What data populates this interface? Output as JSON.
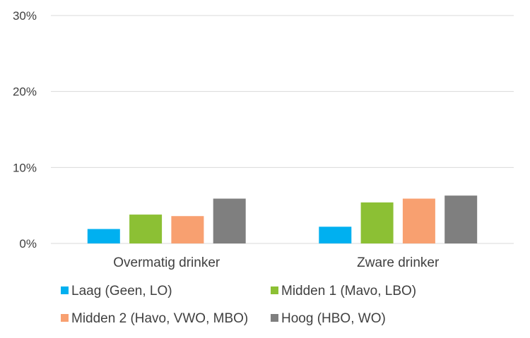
{
  "chart_data": {
    "type": "bar",
    "categories": [
      "Overmatig drinker",
      "Zware drinker"
    ],
    "series": [
      {
        "name": "Laag (Geen, LO)",
        "values": [
          1.9,
          2.2
        ],
        "color": "#00B0F0"
      },
      {
        "name": "Midden 1 (Mavo, LBO)",
        "values": [
          3.8,
          5.4
        ],
        "color": "#8CC034"
      },
      {
        "name": "Midden 2 (Havo, VWO, MBO)",
        "values": [
          3.6,
          5.9
        ],
        "color": "#F8A070"
      },
      {
        "name": "Hoog (HBO, WO)",
        "values": [
          5.9,
          6.3
        ],
        "color": "#7F7F7F"
      }
    ],
    "yticks": [
      "0%",
      "10%",
      "20%",
      "30%"
    ],
    "ylim": [
      0,
      30
    ],
    "y_unit": "%",
    "grid": true,
    "legend_position": "bottom"
  }
}
